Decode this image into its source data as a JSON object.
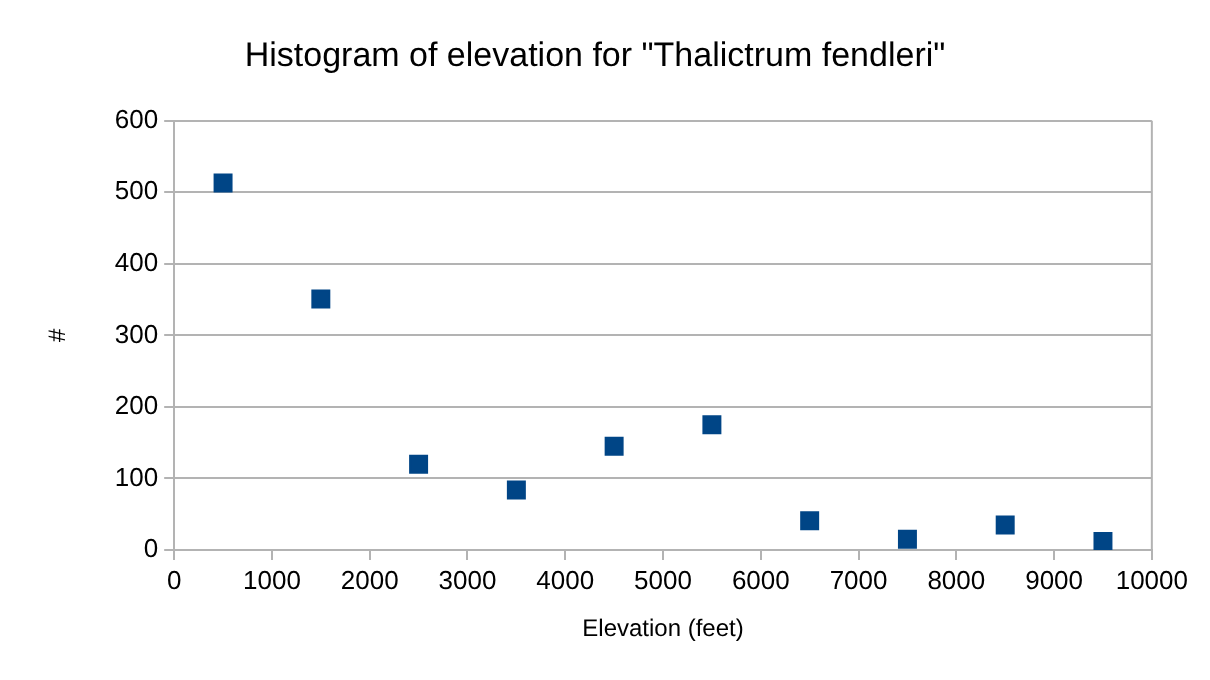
{
  "chart_data": {
    "type": "scatter",
    "title": "Histogram of elevation for \"Thalictrum fendleri\"",
    "xlabel": "Elevation (feet)",
    "ylabel": "#",
    "x": [
      500,
      1500,
      2500,
      3500,
      4500,
      5500,
      6500,
      7500,
      8500,
      9500
    ],
    "series": [
      {
        "color": "#004586",
        "values": [
          513,
          351,
          120,
          84,
          145,
          175,
          41,
          15,
          35,
          12
        ]
      }
    ],
    "xlim": [
      0,
      10000
    ],
    "xticks": [
      0,
      1000,
      2000,
      3000,
      4000,
      5000,
      6000,
      7000,
      8000,
      9000,
      10000
    ],
    "ylim": [
      0,
      600
    ],
    "yticks": [
      0,
      100,
      200,
      300,
      400,
      500,
      600
    ],
    "grid": "y",
    "legend": false,
    "marker": "square"
  }
}
